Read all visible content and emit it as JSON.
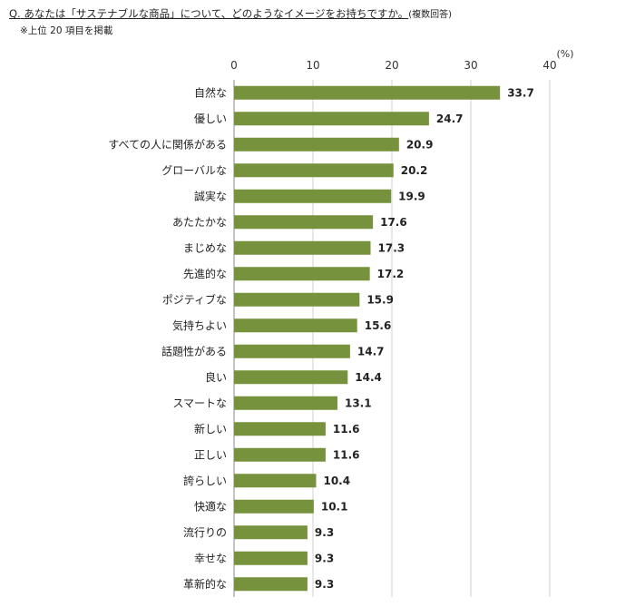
{
  "header": {
    "question_prefix": "Q.",
    "question_text": "あなたは「サステナブルな商品」について、どのようなイメージをお持ちですか。",
    "question_suffix": "(複数回答)",
    "note": "※上位 20 項目を掲載"
  },
  "chart_data": {
    "type": "bar",
    "orientation": "horizontal",
    "unit_label": "(%)",
    "xlim": [
      0,
      40
    ],
    "ticks": [
      0,
      10,
      20,
      30,
      40
    ],
    "bar_color": "#76923c",
    "grid": "vertical",
    "categories": [
      "自然な",
      "優しい",
      "すべての人に関係がある",
      "グローバルな",
      "誠実な",
      "あたたかな",
      "まじめな",
      "先進的な",
      "ポジティブな",
      "気持ちよい",
      "話題性がある",
      "良い",
      "スマートな",
      "新しい",
      "正しい",
      "誇らしい",
      "快適な",
      "流行りの",
      "幸せな",
      "革新的な"
    ],
    "values": [
      33.7,
      24.7,
      20.9,
      20.2,
      19.9,
      17.6,
      17.3,
      17.2,
      15.9,
      15.6,
      14.7,
      14.4,
      13.1,
      11.6,
      11.6,
      10.4,
      10.1,
      9.3,
      9.3,
      9.3
    ],
    "value_labels": [
      "33.7",
      "24.7",
      "20.9",
      "20.2",
      "19.9",
      "17.6",
      "17.3",
      "17.2",
      "15.9",
      "15.6",
      "14.7",
      "14.4",
      "13.1",
      "11.6",
      "11.6",
      "10.4",
      "10.1",
      "9.3",
      "9.3",
      "9.3"
    ]
  }
}
